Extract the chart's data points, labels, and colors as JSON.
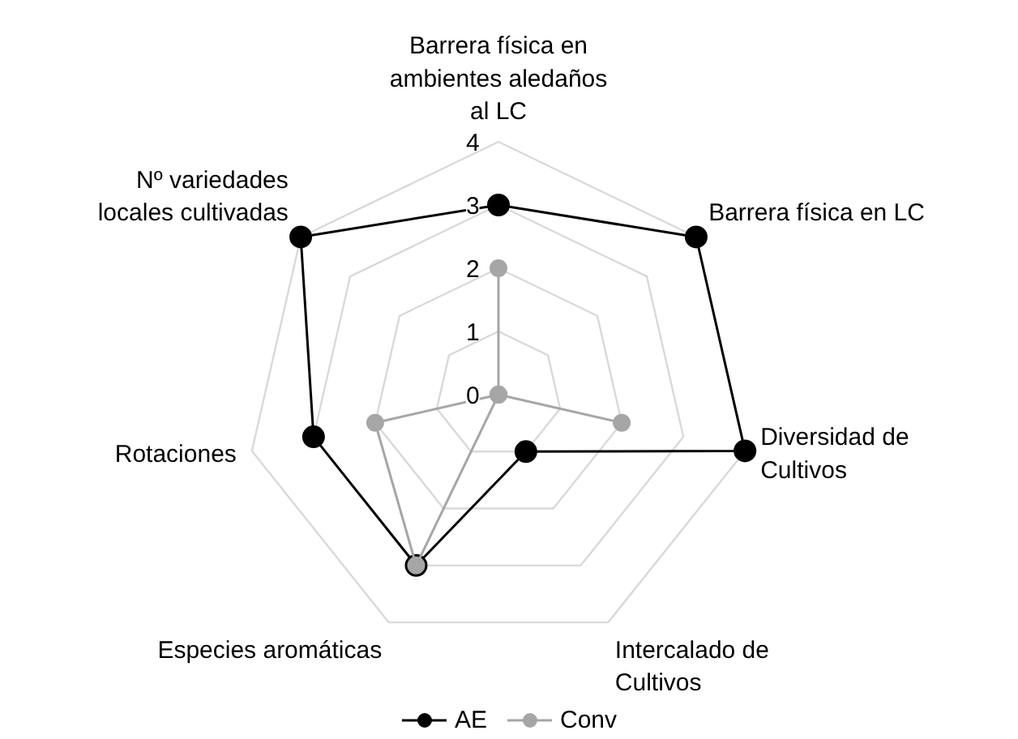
{
  "chart_data": {
    "type": "radar",
    "categories": [
      "Barrera física en ambientes aledaños al LC",
      "Barrera física en LC",
      "Diversidad de Cultivos",
      "Intercalado de Cultivos",
      "Especies aromáticas",
      "Rotaciones",
      "Nº variedades locales cultivadas"
    ],
    "series": [
      {
        "name": "AE",
        "color": "#000000",
        "values": [
          3,
          4,
          4,
          1,
          3,
          3,
          4
        ]
      },
      {
        "name": "Conv",
        "color": "#a6a6a6",
        "values": [
          2,
          0,
          2,
          0,
          3,
          2,
          0
        ]
      }
    ],
    "ylim": [
      0,
      4
    ],
    "yticks": [
      0,
      1,
      2,
      3,
      4
    ],
    "grid": true,
    "legend": "bottom",
    "marker": "circle",
    "line_style": "solid"
  }
}
